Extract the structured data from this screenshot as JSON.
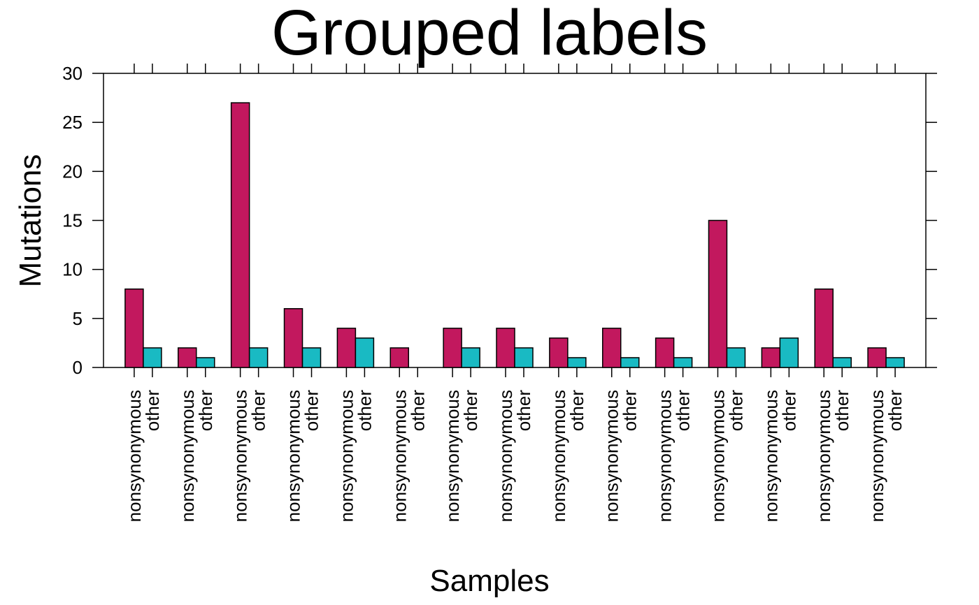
{
  "chart_data": {
    "type": "bar",
    "title": "Grouped labels",
    "xlabel": "Samples",
    "ylabel": "Mutations",
    "ylim": [
      0,
      30
    ],
    "yticks": [
      0,
      5,
      10,
      15,
      20,
      25,
      30
    ],
    "grid": false,
    "legend": "none",
    "groups": 15,
    "series": [
      {
        "label": "nonsynonymous",
        "color": "#C2185E",
        "values": [
          8,
          2,
          27,
          6,
          4,
          2,
          4,
          4,
          3,
          4,
          3,
          15,
          2,
          8,
          2
        ]
      },
      {
        "label": "other",
        "color": "#19BAC3",
        "values": [
          2,
          1,
          2,
          2,
          3,
          0,
          2,
          2,
          1,
          1,
          1,
          2,
          3,
          1,
          1
        ]
      }
    ]
  }
}
